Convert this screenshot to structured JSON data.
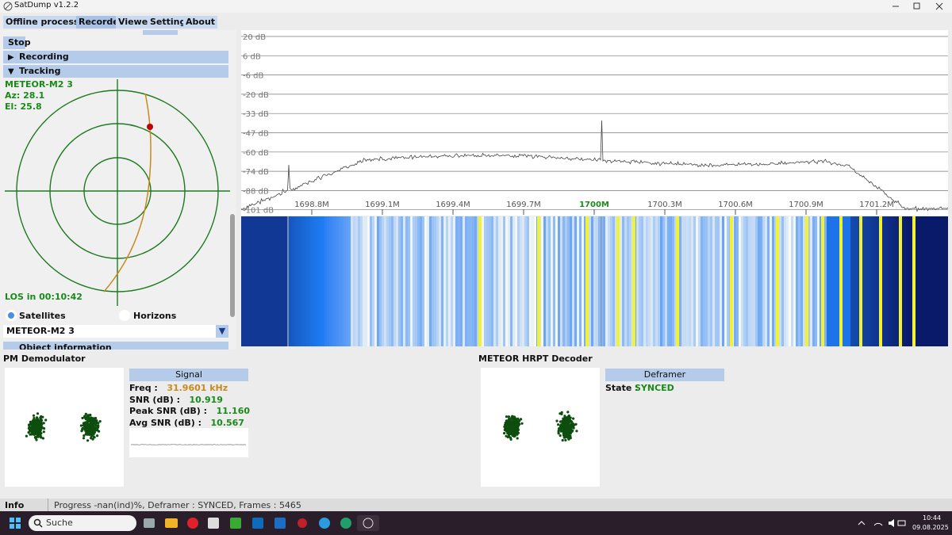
{
  "window": {
    "title": "SatDump v1.2.2"
  },
  "menu": {
    "tabs": [
      "Offline processing",
      "Recorder",
      "Viewer",
      "Settings",
      "About"
    ]
  },
  "left_panel": {
    "stop_button": "Stop",
    "recording_header": "Recording",
    "tracking_header": "Tracking",
    "tracking": {
      "satellite": "METEOR-M2 3",
      "azimuth": "Az: 28.1",
      "elevation": "El: 25.8",
      "los": "LOS in 00:10:42"
    },
    "radio": [
      "Satellites",
      "Horizons"
    ],
    "dropdown": "METEOR-M2 3",
    "object_header": "Object information"
  },
  "spectrum": {
    "db_labels": [
      "20 dB",
      "6 dB",
      "-6 dB",
      "-20 dB",
      "-33 dB",
      "-47 dB",
      "-60 dB",
      "-74 dB",
      "-88 dB",
      "-101 dB"
    ],
    "freq_labels": [
      "1698.8M",
      "1699.1M",
      "1699.4M",
      "1699.7M",
      "1700M",
      "1700.3M",
      "1700.6M",
      "1700.9M",
      "1701.2M"
    ]
  },
  "pm_demodulator": {
    "title": "PM Demodulator",
    "signal_header": "Signal",
    "rows": [
      {
        "label": "Freq :",
        "value": "31.9601 kHz"
      },
      {
        "label": "SNR (dB) :",
        "value": "10.919"
      },
      {
        "label": "Peak SNR (dB) :",
        "value": "11.160"
      },
      {
        "label": "Avg SNR (dB) :",
        "value": "10.567"
      }
    ]
  },
  "decoder": {
    "title": "METEOR HRPT Decoder",
    "deframer_header": "Deframer",
    "state": {
      "label": "State :",
      "value": "SYNCED"
    }
  },
  "status": {
    "label": "Info",
    "text": "Progress -nan(ind)%, Deframer : SYNCED, Frames : 5465"
  },
  "taskbar": {
    "search": "Suche",
    "time": "10:44",
    "date": "09.08.2025"
  }
}
